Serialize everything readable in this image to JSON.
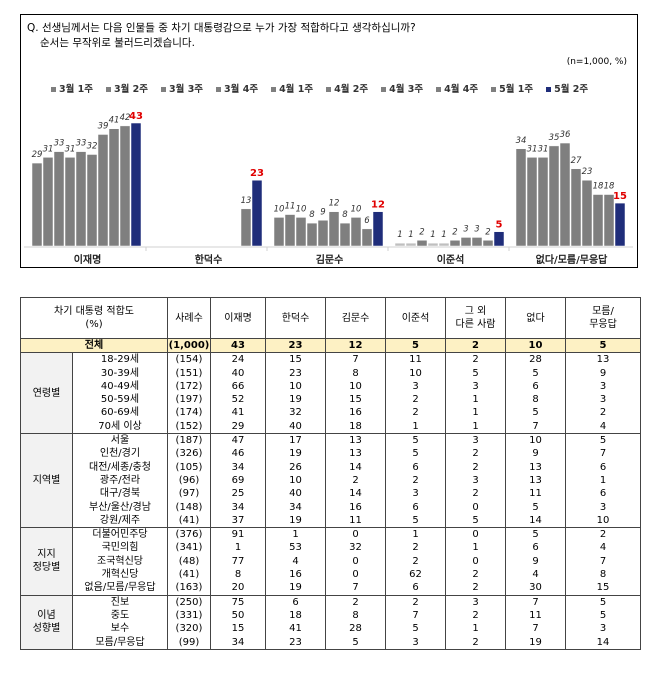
{
  "question": {
    "line1": "Q. 선생님께서는 다음 인물들 중 차기 대통령감으로 누가 가장 적합하다고 생각하십니까?",
    "line2": "순서는 무작위로 불러드리겠습니다.",
    "unit": "(n=1,000,  %)"
  },
  "chart_data": {
    "type": "bar",
    "categories": [
      "이재명",
      "한덕수",
      "김문수",
      "이준석",
      "없다/모름/무응답"
    ],
    "series": [
      {
        "name": "3월 1주",
        "values": [
          29,
          null,
          10,
          1,
          34
        ]
      },
      {
        "name": "3월 2주",
        "values": [
          31,
          null,
          11,
          1,
          31
        ]
      },
      {
        "name": "3월 3주",
        "values": [
          33,
          null,
          10,
          2,
          31
        ]
      },
      {
        "name": "3월 4주",
        "values": [
          31,
          null,
          8,
          1,
          35
        ]
      },
      {
        "name": "4월 1주",
        "values": [
          33,
          null,
          9,
          1,
          36
        ]
      },
      {
        "name": "4월 2주",
        "values": [
          32,
          null,
          12,
          2,
          27
        ]
      },
      {
        "name": "4월 3주",
        "values": [
          39,
          null,
          8,
          3,
          23
        ]
      },
      {
        "name": "4월 4주",
        "values": [
          41,
          null,
          10,
          3,
          18
        ]
      },
      {
        "name": "5월 1주",
        "values": [
          42,
          13,
          6,
          2,
          18
        ]
      },
      {
        "name": "5월 2주",
        "values": [
          43,
          23,
          12,
          5,
          15
        ]
      }
    ],
    "colors": {
      "past": "#7f7f7f",
      "latest": "#1f2d7a",
      "latest_label": "#e00000",
      "pale": "#bfbfbf"
    },
    "legend": "top",
    "grid": false
  },
  "table": {
    "header": {
      "title": "차기 대통령 적합도",
      "unit": "(%)",
      "cases": "사례수",
      "cols": [
        "이재명",
        "한덕수",
        "김문수",
        "이준석",
        "그 외\n다른 사람",
        "없다",
        "모름/\n무응답"
      ]
    },
    "total": {
      "label": "전체",
      "cases": "(1,000)",
      "values": [
        "43",
        "23",
        "12",
        "5",
        "2",
        "10",
        "5"
      ]
    },
    "groups": [
      {
        "name": "연령별",
        "rows": [
          [
            "18-29세",
            "(154)",
            "24",
            "15",
            "7",
            "11",
            "2",
            "28",
            "13"
          ],
          [
            "30-39세",
            "(151)",
            "40",
            "23",
            "8",
            "10",
            "5",
            "5",
            "9"
          ],
          [
            "40-49세",
            "(172)",
            "66",
            "10",
            "10",
            "3",
            "3",
            "6",
            "3"
          ],
          [
            "50-59세",
            "(197)",
            "52",
            "19",
            "15",
            "2",
            "1",
            "8",
            "3"
          ],
          [
            "60-69세",
            "(174)",
            "41",
            "32",
            "16",
            "2",
            "1",
            "5",
            "2"
          ],
          [
            "70세 이상",
            "(152)",
            "29",
            "40",
            "18",
            "1",
            "1",
            "7",
            "4"
          ]
        ]
      },
      {
        "name": "지역별",
        "rows": [
          [
            "서울",
            "(187)",
            "47",
            "17",
            "13",
            "5",
            "3",
            "10",
            "5"
          ],
          [
            "인천/경기",
            "(326)",
            "46",
            "19",
            "13",
            "5",
            "2",
            "9",
            "7"
          ],
          [
            "대전/세종/충청",
            "(105)",
            "34",
            "26",
            "14",
            "6",
            "2",
            "13",
            "6"
          ],
          [
            "광주/전라",
            "(96)",
            "69",
            "10",
            "2",
            "2",
            "3",
            "13",
            "1"
          ],
          [
            "대구/경북",
            "(97)",
            "25",
            "40",
            "14",
            "3",
            "2",
            "11",
            "6"
          ],
          [
            "부산/울산/경남",
            "(148)",
            "34",
            "34",
            "16",
            "6",
            "0",
            "5",
            "3"
          ],
          [
            "강원/제주",
            "(41)",
            "37",
            "19",
            "11",
            "5",
            "5",
            "14",
            "10"
          ]
        ]
      },
      {
        "name": "지지\n정당별",
        "rows": [
          [
            "더불어민주당",
            "(376)",
            "91",
            "1",
            "0",
            "1",
            "0",
            "5",
            "2"
          ],
          [
            "국민의힘",
            "(341)",
            "1",
            "53",
            "32",
            "2",
            "1",
            "6",
            "4"
          ],
          [
            "조국혁신당",
            "(48)",
            "77",
            "4",
            "0",
            "2",
            "0",
            "9",
            "7"
          ],
          [
            "개혁신당",
            "(41)",
            "8",
            "16",
            "0",
            "62",
            "2",
            "4",
            "8"
          ],
          [
            "없음/모름/무응답",
            "(163)",
            "20",
            "19",
            "7",
            "6",
            "2",
            "30",
            "15"
          ]
        ]
      },
      {
        "name": "이념\n성향별",
        "rows": [
          [
            "진보",
            "(250)",
            "75",
            "6",
            "2",
            "2",
            "3",
            "7",
            "5"
          ],
          [
            "중도",
            "(331)",
            "50",
            "18",
            "8",
            "7",
            "2",
            "11",
            "5"
          ],
          [
            "보수",
            "(320)",
            "15",
            "41",
            "28",
            "5",
            "1",
            "7",
            "3"
          ],
          [
            "모름/무응답",
            "(99)",
            "34",
            "23",
            "5",
            "3",
            "2",
            "19",
            "14"
          ]
        ]
      }
    ]
  }
}
